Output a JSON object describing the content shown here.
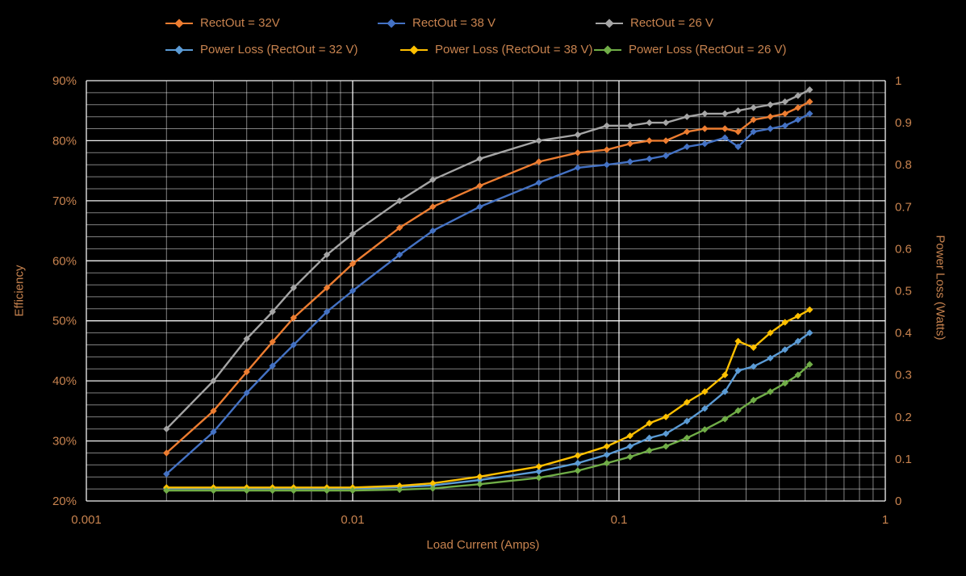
{
  "chart_data": {
    "type": "line",
    "x_scale": "log",
    "grid": true,
    "background": "#000000",
    "text_color": "#C8834F",
    "xlabel": "Load Current (Amps)",
    "ylabel_left": "Efficiency",
    "ylabel_right": "Power Loss (Watts)",
    "xlim": [
      0.001,
      1
    ],
    "y1lim": [
      20,
      90
    ],
    "y2lim": [
      0,
      1
    ],
    "x_ticks": [
      "0.001",
      "0.01",
      "0.1",
      "1"
    ],
    "y_left_ticks": [
      "20%",
      "30%",
      "40%",
      "50%",
      "60%",
      "70%",
      "80%",
      "90%"
    ],
    "y_right_ticks": [
      "0",
      "0.1",
      "0.2",
      "0.3",
      "0.4",
      "0.5",
      "0.6",
      "0.7",
      "0.8",
      "0.9",
      "1"
    ],
    "x": [
      0.002,
      0.003,
      0.004,
      0.005,
      0.006,
      0.008,
      0.01,
      0.015,
      0.02,
      0.03,
      0.05,
      0.07,
      0.09,
      0.11,
      0.13,
      0.15,
      0.18,
      0.21,
      0.25,
      0.28,
      0.32,
      0.37,
      0.42,
      0.47,
      0.52
    ],
    "series": [
      {
        "name": "RectOut = 32V",
        "axis": "left",
        "unit": "percent",
        "color": "#ED7D31",
        "values": [
          28,
          35,
          41.5,
          46.5,
          50.5,
          55.5,
          59.5,
          65.5,
          69,
          72.5,
          76.5,
          78,
          78.5,
          79.5,
          80,
          80,
          81.5,
          82,
          82,
          81.5,
          83.5,
          84,
          84.5,
          85.5,
          86.5
        ]
      },
      {
        "name": "RectOut = 38 V",
        "axis": "left",
        "unit": "percent",
        "color": "#4472C4",
        "values": [
          24.5,
          31.5,
          38,
          42.5,
          46,
          51.5,
          55,
          61,
          65,
          69,
          73,
          75.5,
          76,
          76.5,
          77,
          77.5,
          79,
          79.5,
          80.5,
          79,
          81.5,
          82,
          82.5,
          83.5,
          84.5
        ]
      },
      {
        "name": "RectOut = 26 V",
        "axis": "left",
        "unit": "percent",
        "color": "#A5A5A5",
        "values": [
          32,
          40,
          47,
          51.5,
          55.5,
          61,
          64.5,
          70,
          73.5,
          77,
          80,
          81,
          82.5,
          82.5,
          83,
          83,
          84,
          84.5,
          84.5,
          85,
          85.5,
          86,
          86.5,
          87.5,
          88.5
        ]
      },
      {
        "name": "Power Loss (RectOut = 32 V)",
        "axis": "right",
        "unit": "watts",
        "color": "#5B9BD5",
        "values": [
          0.03,
          0.03,
          0.03,
          0.03,
          0.03,
          0.03,
          0.03,
          0.033,
          0.037,
          0.05,
          0.07,
          0.09,
          0.11,
          0.13,
          0.15,
          0.16,
          0.19,
          0.22,
          0.26,
          0.31,
          0.32,
          0.34,
          0.36,
          0.38,
          0.4
        ]
      },
      {
        "name": "Power Loss (RectOut = 38 V)",
        "axis": "right",
        "unit": "watts",
        "color": "#FFC000",
        "values": [
          0.032,
          0.032,
          0.032,
          0.032,
          0.032,
          0.032,
          0.032,
          0.036,
          0.042,
          0.058,
          0.082,
          0.108,
          0.13,
          0.155,
          0.185,
          0.2,
          0.235,
          0.26,
          0.3,
          0.38,
          0.365,
          0.4,
          0.425,
          0.44,
          0.455
        ]
      },
      {
        "name": "Power Loss (RectOut = 26 V)",
        "axis": "right",
        "unit": "watts",
        "color": "#70AD47",
        "values": [
          0.025,
          0.025,
          0.025,
          0.025,
          0.025,
          0.025,
          0.025,
          0.027,
          0.03,
          0.04,
          0.055,
          0.072,
          0.09,
          0.105,
          0.12,
          0.13,
          0.15,
          0.17,
          0.195,
          0.215,
          0.24,
          0.26,
          0.28,
          0.3,
          0.325
        ]
      }
    ]
  }
}
